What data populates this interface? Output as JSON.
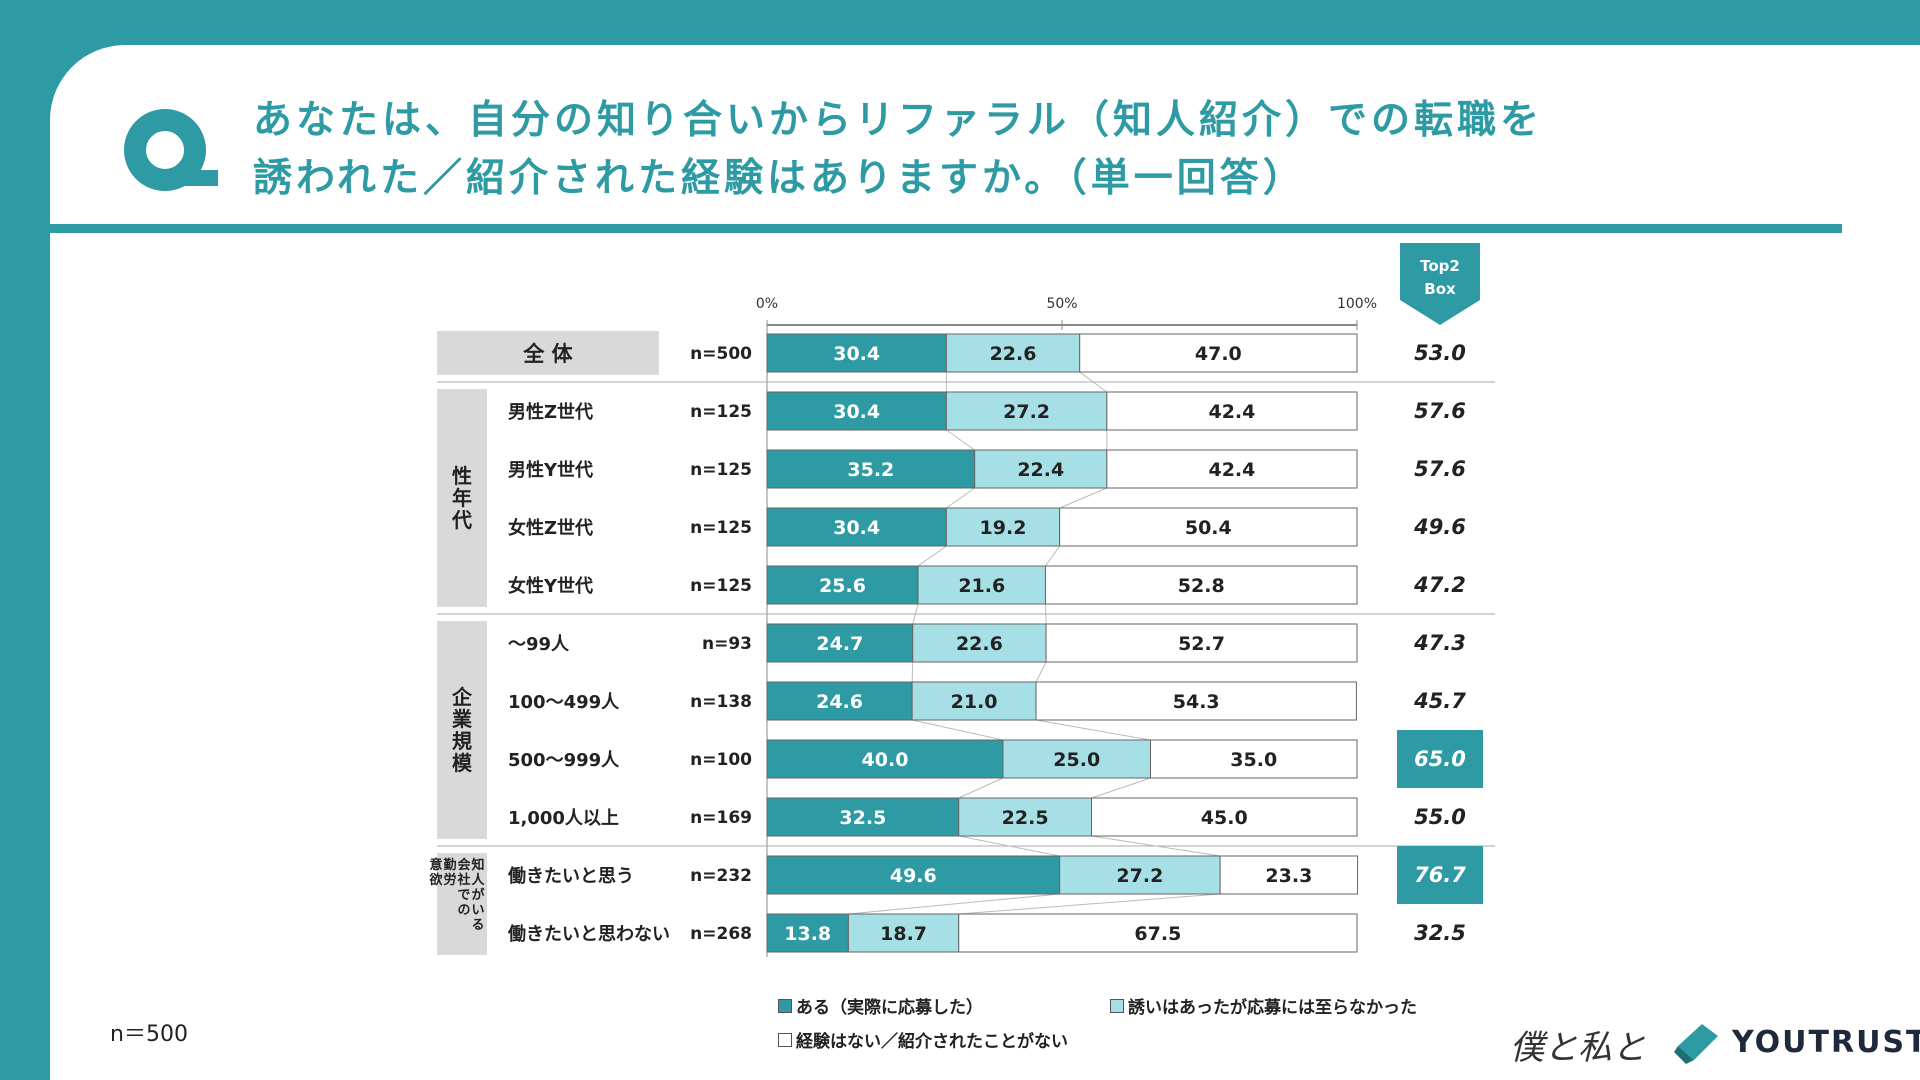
{
  "title": {
    "line1": "あなたは、自分の知り合いからリファラル（知人紹介）での転職を",
    "line2": "誘われた／紹介された経験はありますか。（単一回答）"
  },
  "footer": {
    "n_note": "n＝500",
    "logo_script": "僕と私と",
    "logo_text": "YOUTRUST"
  },
  "colors": {
    "brand": "#2e9aa3",
    "series1": "#2e9aa3",
    "series2": "#a6e0e6",
    "series3": "#ffffff",
    "highlight": "#2e9aa3"
  },
  "chart_data": {
    "type": "bar",
    "stacked": true,
    "orientation": "horizontal",
    "x_ticks": [
      "0%",
      "50%",
      "100%"
    ],
    "xlim": [
      0,
      100
    ],
    "top2_header": [
      "Top2",
      "Box"
    ],
    "groups": [
      {
        "label": "全 体",
        "rows": [
          0
        ]
      },
      {
        "label": "性年代",
        "rows": [
          1,
          2,
          3,
          4
        ]
      },
      {
        "label": "企業規模",
        "rows": [
          5,
          6,
          7,
          8
        ]
      },
      {
        "label": "知人がいる会社での勤労意欲",
        "rows": [
          9,
          10
        ]
      }
    ],
    "categories": [
      "全 体",
      "男性Z世代",
      "男性Y世代",
      "女性Z世代",
      "女性Y世代",
      "〜99人",
      "100〜499人",
      "500〜999人",
      "1,000人以上",
      "働きたいと思う",
      "働きたいと思わない"
    ],
    "n_labels": [
      "n=500",
      "n=125",
      "n=125",
      "n=125",
      "n=125",
      "n=93",
      "n=138",
      "n=100",
      "n=169",
      "n=232",
      "n=268"
    ],
    "series": [
      {
        "name": "ある（実際に応募した）",
        "values": [
          30.4,
          30.4,
          35.2,
          30.4,
          25.6,
          24.7,
          24.6,
          40.0,
          32.5,
          49.6,
          13.8
        ]
      },
      {
        "name": "誘いはあったが応募には至らなかった",
        "values": [
          22.6,
          27.2,
          22.4,
          19.2,
          21.6,
          22.6,
          21.0,
          25.0,
          22.5,
          27.2,
          18.7
        ]
      },
      {
        "name": "経験はない／紹介されたことがない",
        "values": [
          47.0,
          42.4,
          42.4,
          50.4,
          52.8,
          52.7,
          54.3,
          35.0,
          45.0,
          23.3,
          67.5
        ]
      }
    ],
    "top2box": [
      "53.0",
      "57.6",
      "57.6",
      "49.6",
      "47.2",
      "47.3",
      "45.7",
      "65.0",
      "55.0",
      "76.7",
      "32.5"
    ],
    "top2box_highlight": [
      false,
      false,
      false,
      false,
      false,
      false,
      false,
      true,
      false,
      true,
      false
    ]
  }
}
